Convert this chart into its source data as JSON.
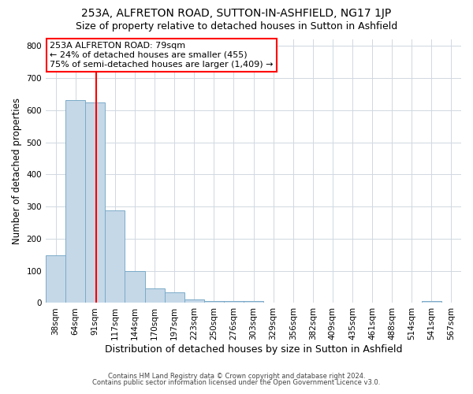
{
  "title": "253A, ALFRETON ROAD, SUTTON-IN-ASHFIELD, NG17 1JP",
  "subtitle": "Size of property relative to detached houses in Sutton in Ashfield",
  "xlabel": "Distribution of detached houses by size in Sutton in Ashfield",
  "ylabel": "Number of detached properties",
  "bar_labels": [
    "38sqm",
    "64sqm",
    "91sqm",
    "117sqm",
    "144sqm",
    "170sqm",
    "197sqm",
    "223sqm",
    "250sqm",
    "276sqm",
    "303sqm",
    "329sqm",
    "356sqm",
    "382sqm",
    "409sqm",
    "435sqm",
    "461sqm",
    "488sqm",
    "514sqm",
    "541sqm",
    "567sqm"
  ],
  "bar_values": [
    148,
    632,
    625,
    288,
    100,
    45,
    32,
    12,
    5,
    5,
    5,
    0,
    0,
    0,
    0,
    0,
    0,
    0,
    0,
    5,
    0
  ],
  "bar_color": "#c5d8e8",
  "bar_edge_color": "#7baac8",
  "vline_color": "red",
  "annotation_line1": "253A ALFRETON ROAD: 79sqm",
  "annotation_line2": "← 24% of detached houses are smaller (455)",
  "annotation_line3": "75% of semi-detached houses are larger (1,409) →",
  "annotation_box_color": "white",
  "annotation_box_edge_color": "red",
  "ylim": [
    0,
    820
  ],
  "yticks": [
    0,
    100,
    200,
    300,
    400,
    500,
    600,
    700,
    800
  ],
  "footer1": "Contains HM Land Registry data © Crown copyright and database right 2024.",
  "footer2": "Contains public sector information licensed under the Open Government Licence v3.0.",
  "bg_color": "white",
  "grid_color": "#d0d8e0",
  "title_fontsize": 10,
  "subtitle_fontsize": 9,
  "xlabel_fontsize": 9,
  "ylabel_fontsize": 8.5,
  "tick_fontsize": 7.5,
  "annotation_fontsize": 8,
  "footer_fontsize": 6
}
